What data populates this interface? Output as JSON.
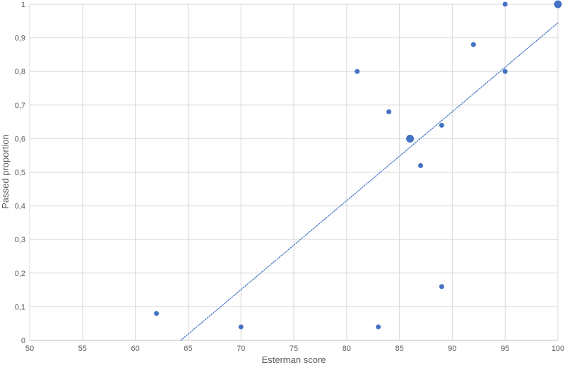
{
  "chart_data": {
    "type": "scatter",
    "title": "",
    "xlabel": "Esterman score",
    "ylabel": "Passed proportion",
    "xlim": [
      50,
      100
    ],
    "ylim": [
      0,
      1
    ],
    "x_ticks": [
      "50",
      "55",
      "60",
      "65",
      "70",
      "75",
      "80",
      "85",
      "90",
      "95",
      "100"
    ],
    "y_ticks": [
      "0",
      "0,1",
      "0,2",
      "0,3",
      "0,4",
      "0,5",
      "0,6",
      "0,7",
      "0,8",
      "0,9",
      "1"
    ],
    "grid": true,
    "legend": "none",
    "point_color": "#4472c4",
    "trendline_color": "#4472c4",
    "series": [
      {
        "points": [
          {
            "x": 62,
            "y": 0.08,
            "count": 1
          },
          {
            "x": 70,
            "y": 0.04,
            "count": 1
          },
          {
            "x": 81,
            "y": 0.8,
            "count": 1
          },
          {
            "x": 83,
            "y": 0.04,
            "count": 1
          },
          {
            "x": 84,
            "y": 0.68,
            "count": 1
          },
          {
            "x": 86,
            "y": 0.6,
            "count": 2
          },
          {
            "x": 87,
            "y": 0.52,
            "count": 1
          },
          {
            "x": 89,
            "y": 0.64,
            "count": 1
          },
          {
            "x": 89,
            "y": 0.16,
            "count": 1
          },
          {
            "x": 92,
            "y": 0.88,
            "count": 1
          },
          {
            "x": 95,
            "y": 1.0,
            "count": 1
          },
          {
            "x": 95,
            "y": 0.8,
            "count": 1
          },
          {
            "x": 100,
            "y": 1.0,
            "count": 2
          }
        ]
      }
    ],
    "trendline": {
      "type": "linear",
      "style": "dotted",
      "x_start": 64.3,
      "x_end": 100,
      "y_start": 0,
      "y_end": 0.945
    }
  }
}
